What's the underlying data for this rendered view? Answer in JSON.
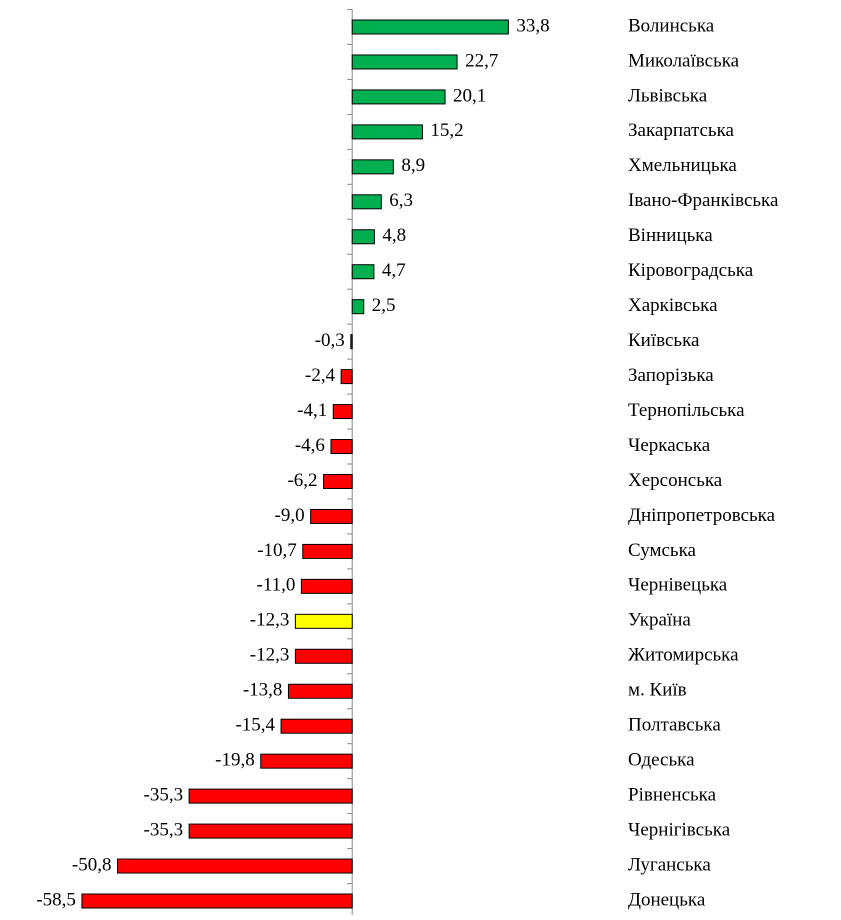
{
  "chart_data": {
    "type": "bar",
    "orientation": "horizontal",
    "categories": [
      "Волинська",
      "Миколаївська",
      "Львівська",
      "Закарпатська",
      "Хмельницька",
      "Івано-Франківська",
      "Вінницька",
      "Кіровоградська",
      "Харківська",
      "Київська",
      "Запорізька",
      "Тернопільська",
      "Черкаська",
      "Херсонська",
      "Дніпропетровська",
      "Сумська",
      "Чернівецька",
      "Україна",
      "Житомирська",
      "м. Київ",
      "Полтавська",
      "Одеська",
      "Рівненська",
      "Чернігівська",
      "Луганська",
      "Донецька"
    ],
    "values": [
      33.8,
      22.7,
      20.1,
      15.2,
      8.9,
      6.3,
      4.8,
      4.7,
      2.5,
      -0.3,
      -2.4,
      -4.1,
      -4.6,
      -6.2,
      -9.0,
      -10.7,
      -11.0,
      -12.3,
      -12.3,
      -13.8,
      -15.4,
      -19.8,
      -35.3,
      -35.3,
      -50.8,
      -58.5
    ],
    "value_labels": [
      "33,8",
      "22,7",
      "20,1",
      "15,2",
      "8,9",
      "6,3",
      "4,8",
      "4,7",
      "2,5",
      "-0,3",
      "-2,4",
      "-4,1",
      "-4,6",
      "-6,2",
      "-9,0",
      "-10,7",
      "-11,0",
      "-12,3",
      "-12,3",
      "-13,8",
      "-15,4",
      "-19,8",
      "-35,3",
      "-35,3",
      "-50,8",
      "-58,5"
    ],
    "colors": [
      "#00b050",
      "#00b050",
      "#00b050",
      "#00b050",
      "#00b050",
      "#00b050",
      "#00b050",
      "#00b050",
      "#00b050",
      "#ff0000",
      "#ff0000",
      "#ff0000",
      "#ff0000",
      "#ff0000",
      "#ff0000",
      "#ff0000",
      "#ff0000",
      "#ffff00",
      "#ff0000",
      "#ff0000",
      "#ff0000",
      "#ff0000",
      "#ff0000",
      "#ff0000",
      "#ff0000",
      "#ff0000"
    ],
    "xlim": [
      -60,
      40
    ]
  }
}
